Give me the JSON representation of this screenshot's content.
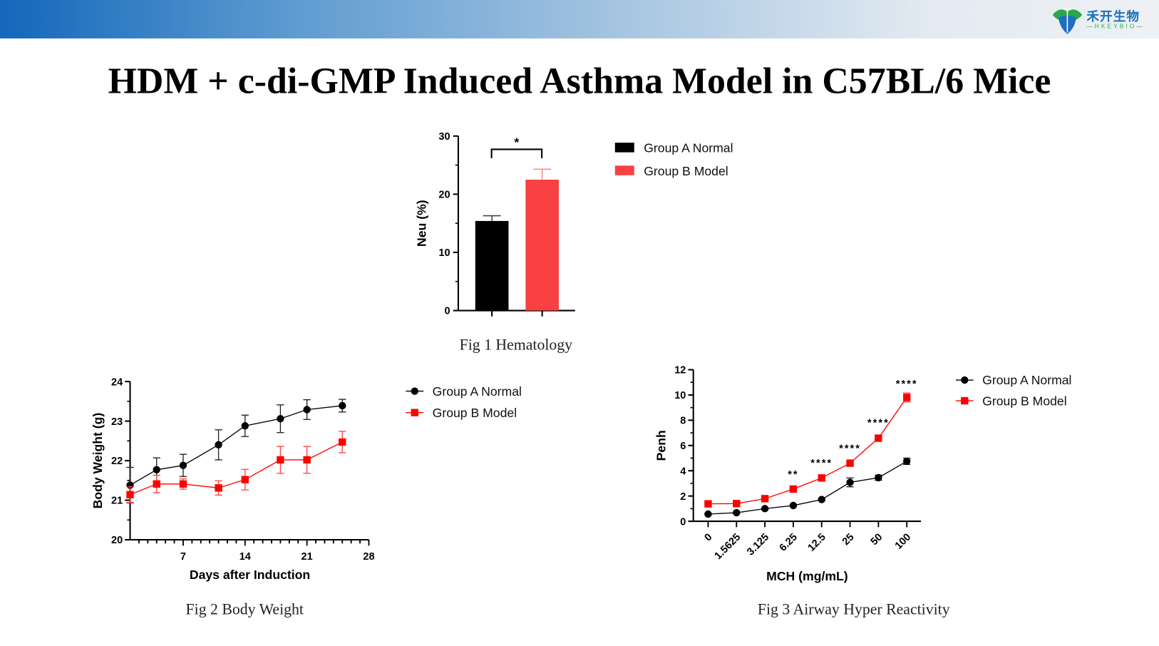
{
  "header": {
    "logo": {
      "name_cn": "禾开生物",
      "name_en": "—HKEYBIO—",
      "icon": "leaf-shield-logo"
    },
    "colors": {
      "bar_start": "#1467bb",
      "bar_end": "#eef1f4"
    }
  },
  "title": "HDM + c-di-GMP Induced Asthma Model in C57BL/6 Mice",
  "colors": {
    "group_a": "#000000",
    "group_b": "#f94144",
    "group_b_line": "#ff0000",
    "stars": "#f26b6b"
  },
  "chart_data": [
    {
      "id": "fig1",
      "type": "bar",
      "caption": "Fig 1 Hematology",
      "ylabel": "Neu  (%)",
      "ylim": [
        0,
        30
      ],
      "yticks": [
        0,
        10,
        20,
        30
      ],
      "categories": [
        "Group A Normal",
        "Group B Model"
      ],
      "values": [
        15.4,
        22.5
      ],
      "errors": [
        0.9,
        1.8
      ],
      "significance": "*",
      "legend": [
        "Group A Normal",
        "Group B Model"
      ],
      "legend_position": "right"
    },
    {
      "id": "fig2",
      "type": "line",
      "caption": "Fig 2 Body Weight",
      "xlabel": "Days after Induction",
      "ylabel": "Body Weight (g)",
      "xlim": [
        1,
        28
      ],
      "xticks": [
        7,
        14,
        21,
        28
      ],
      "ylim": [
        20,
        24
      ],
      "yticks": [
        20,
        21,
        22,
        23,
        24
      ],
      "x": [
        1,
        4,
        7,
        11,
        14,
        18,
        21,
        25
      ],
      "series": [
        {
          "name": "Group A Normal",
          "values": [
            21.38,
            21.77,
            21.88,
            22.4,
            22.88,
            23.06,
            23.29,
            23.39
          ],
          "errors": [
            0.45,
            0.3,
            0.28,
            0.38,
            0.27,
            0.35,
            0.25,
            0.16
          ],
          "marker": "circle"
        },
        {
          "name": "Group B Model",
          "values": [
            21.14,
            21.41,
            21.41,
            21.31,
            21.52,
            22.02,
            22.02,
            22.47
          ],
          "errors": [
            0.2,
            0.22,
            0.13,
            0.18,
            0.26,
            0.34,
            0.34,
            0.27
          ],
          "marker": "square"
        }
      ],
      "legend_position": "right"
    },
    {
      "id": "fig3",
      "type": "line",
      "caption": "Fig 3 Airway Hyper Reactivity",
      "xlabel": "MCH (mg/mL)",
      "ylabel": "Penh",
      "categories": [
        "0",
        "1.5625",
        "3.125",
        "6.25",
        "12.5",
        "25",
        "50",
        "100"
      ],
      "ylim": [
        0,
        12
      ],
      "yticks": [
        0,
        2,
        4,
        6,
        8,
        10,
        12
      ],
      "series": [
        {
          "name": "Group A Normal",
          "values": [
            0.57,
            0.68,
            1.0,
            1.25,
            1.72,
            3.08,
            3.45,
            4.75
          ],
          "errors": [
            0.05,
            0.05,
            0.05,
            0.05,
            0.08,
            0.35,
            0.2,
            0.25
          ],
          "marker": "circle"
        },
        {
          "name": "Group B Model",
          "values": [
            1.38,
            1.4,
            1.79,
            2.55,
            3.43,
            4.6,
            6.58,
            9.8
          ],
          "errors": [
            0.05,
            0.05,
            0.05,
            0.08,
            0.1,
            0.1,
            0.15,
            0.35
          ],
          "marker": "square"
        }
      ],
      "annotations": [
        "",
        "",
        "",
        "**",
        "****",
        "****",
        "****",
        "****"
      ],
      "legend_position": "right"
    }
  ]
}
